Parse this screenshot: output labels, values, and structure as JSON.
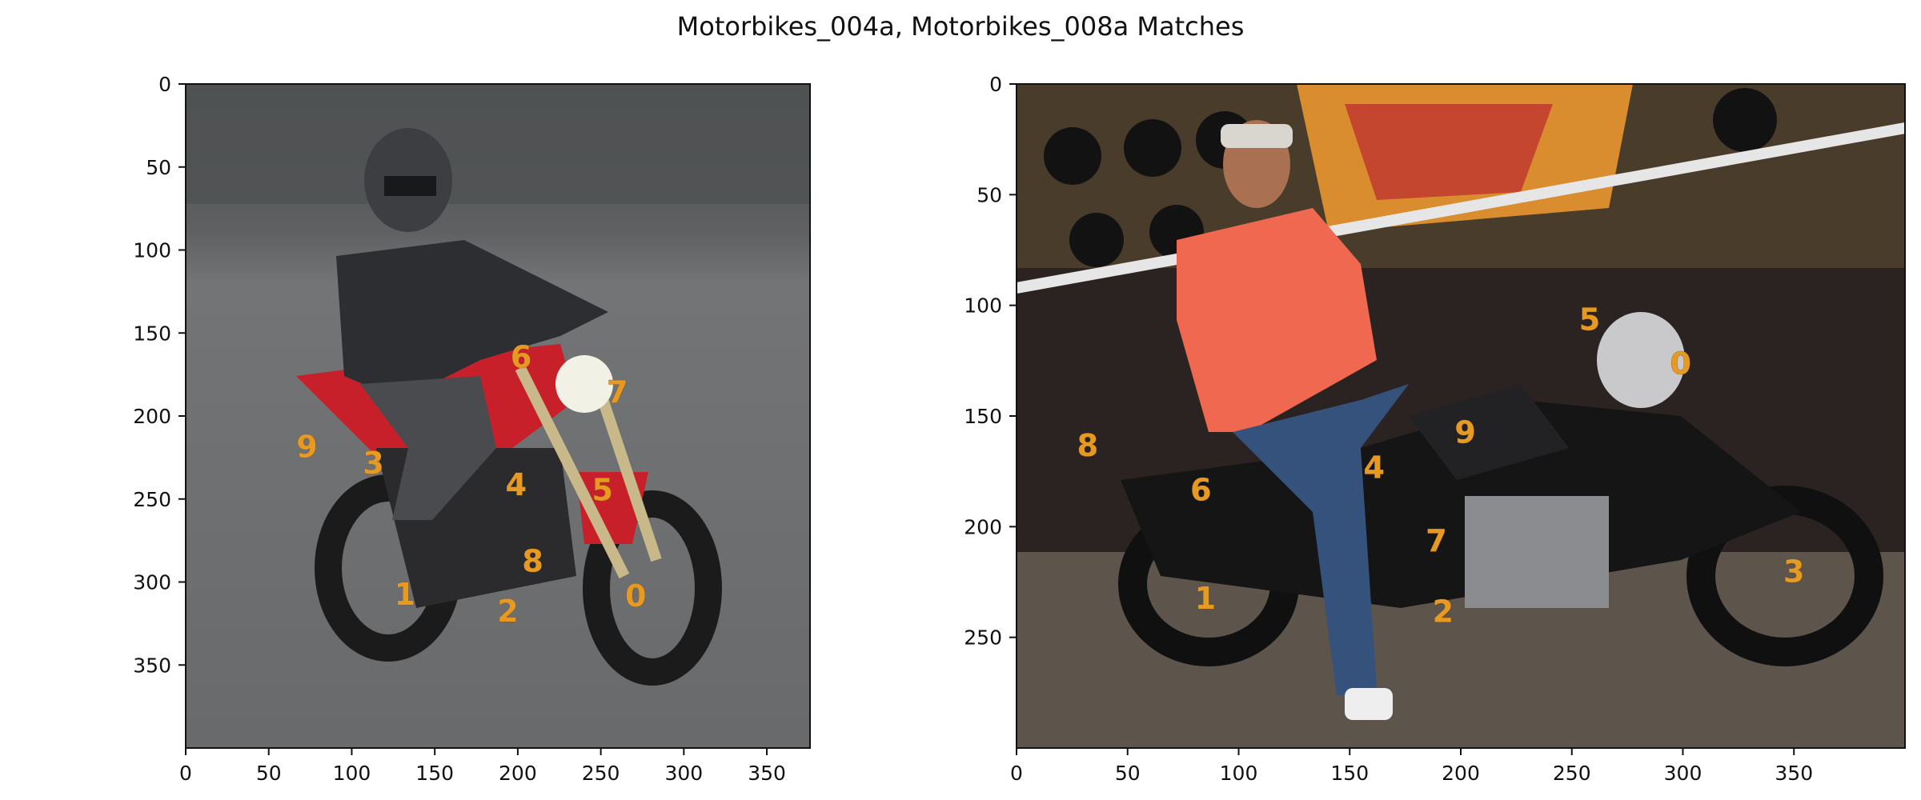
{
  "title": "Motorbikes_004a, Motorbikes_008a Matches",
  "colors": {
    "keypoint": "#e69a22",
    "axis": "#111111",
    "left_photo_sky": "#5b5d5f",
    "left_photo_ground": "#6f7072",
    "left_bike_red": "#c8202a",
    "right_photo_wall": "#2a2321",
    "right_photo_mural": "#d98d2f",
    "right_shirt": "#f0684f",
    "right_jeans": "#35527c"
  },
  "chart_data": [
    {
      "type": "scatter",
      "name": "Motorbikes_004a",
      "xlim": [
        0,
        376
      ],
      "ylim": [
        0,
        400
      ],
      "y_inverted": true,
      "xticks": [
        0,
        50,
        100,
        150,
        200,
        250,
        300,
        350
      ],
      "yticks": [
        0,
        50,
        100,
        150,
        200,
        250,
        300,
        350
      ],
      "points": [
        {
          "label": "0",
          "x": 271,
          "y": 308
        },
        {
          "label": "1",
          "x": 132,
          "y": 307
        },
        {
          "label": "2",
          "x": 194,
          "y": 317
        },
        {
          "label": "3",
          "x": 113,
          "y": 228
        },
        {
          "label": "4",
          "x": 199,
          "y": 241
        },
        {
          "label": "5",
          "x": 251,
          "y": 244
        },
        {
          "label": "6",
          "x": 202,
          "y": 164
        },
        {
          "label": "7",
          "x": 260,
          "y": 185
        },
        {
          "label": "8",
          "x": 209,
          "y": 287
        },
        {
          "label": "9",
          "x": 73,
          "y": 218
        }
      ]
    },
    {
      "type": "scatter",
      "name": "Motorbikes_008a",
      "xlim": [
        0,
        400
      ],
      "ylim": [
        0,
        300
      ],
      "y_inverted": true,
      "xticks": [
        0,
        50,
        100,
        150,
        200,
        250,
        300,
        350
      ],
      "yticks": [
        0,
        50,
        100,
        150,
        200,
        250
      ],
      "points": [
        {
          "label": "0",
          "x": 299,
          "y": 126
        },
        {
          "label": "1",
          "x": 85,
          "y": 232
        },
        {
          "label": "2",
          "x": 192,
          "y": 238
        },
        {
          "label": "3",
          "x": 350,
          "y": 220
        },
        {
          "label": "4",
          "x": 161,
          "y": 173
        },
        {
          "label": "5",
          "x": 258,
          "y": 106
        },
        {
          "label": "6",
          "x": 83,
          "y": 183
        },
        {
          "label": "7",
          "x": 189,
          "y": 206
        },
        {
          "label": "8",
          "x": 32,
          "y": 163
        },
        {
          "label": "9",
          "x": 202,
          "y": 157
        }
      ]
    }
  ]
}
